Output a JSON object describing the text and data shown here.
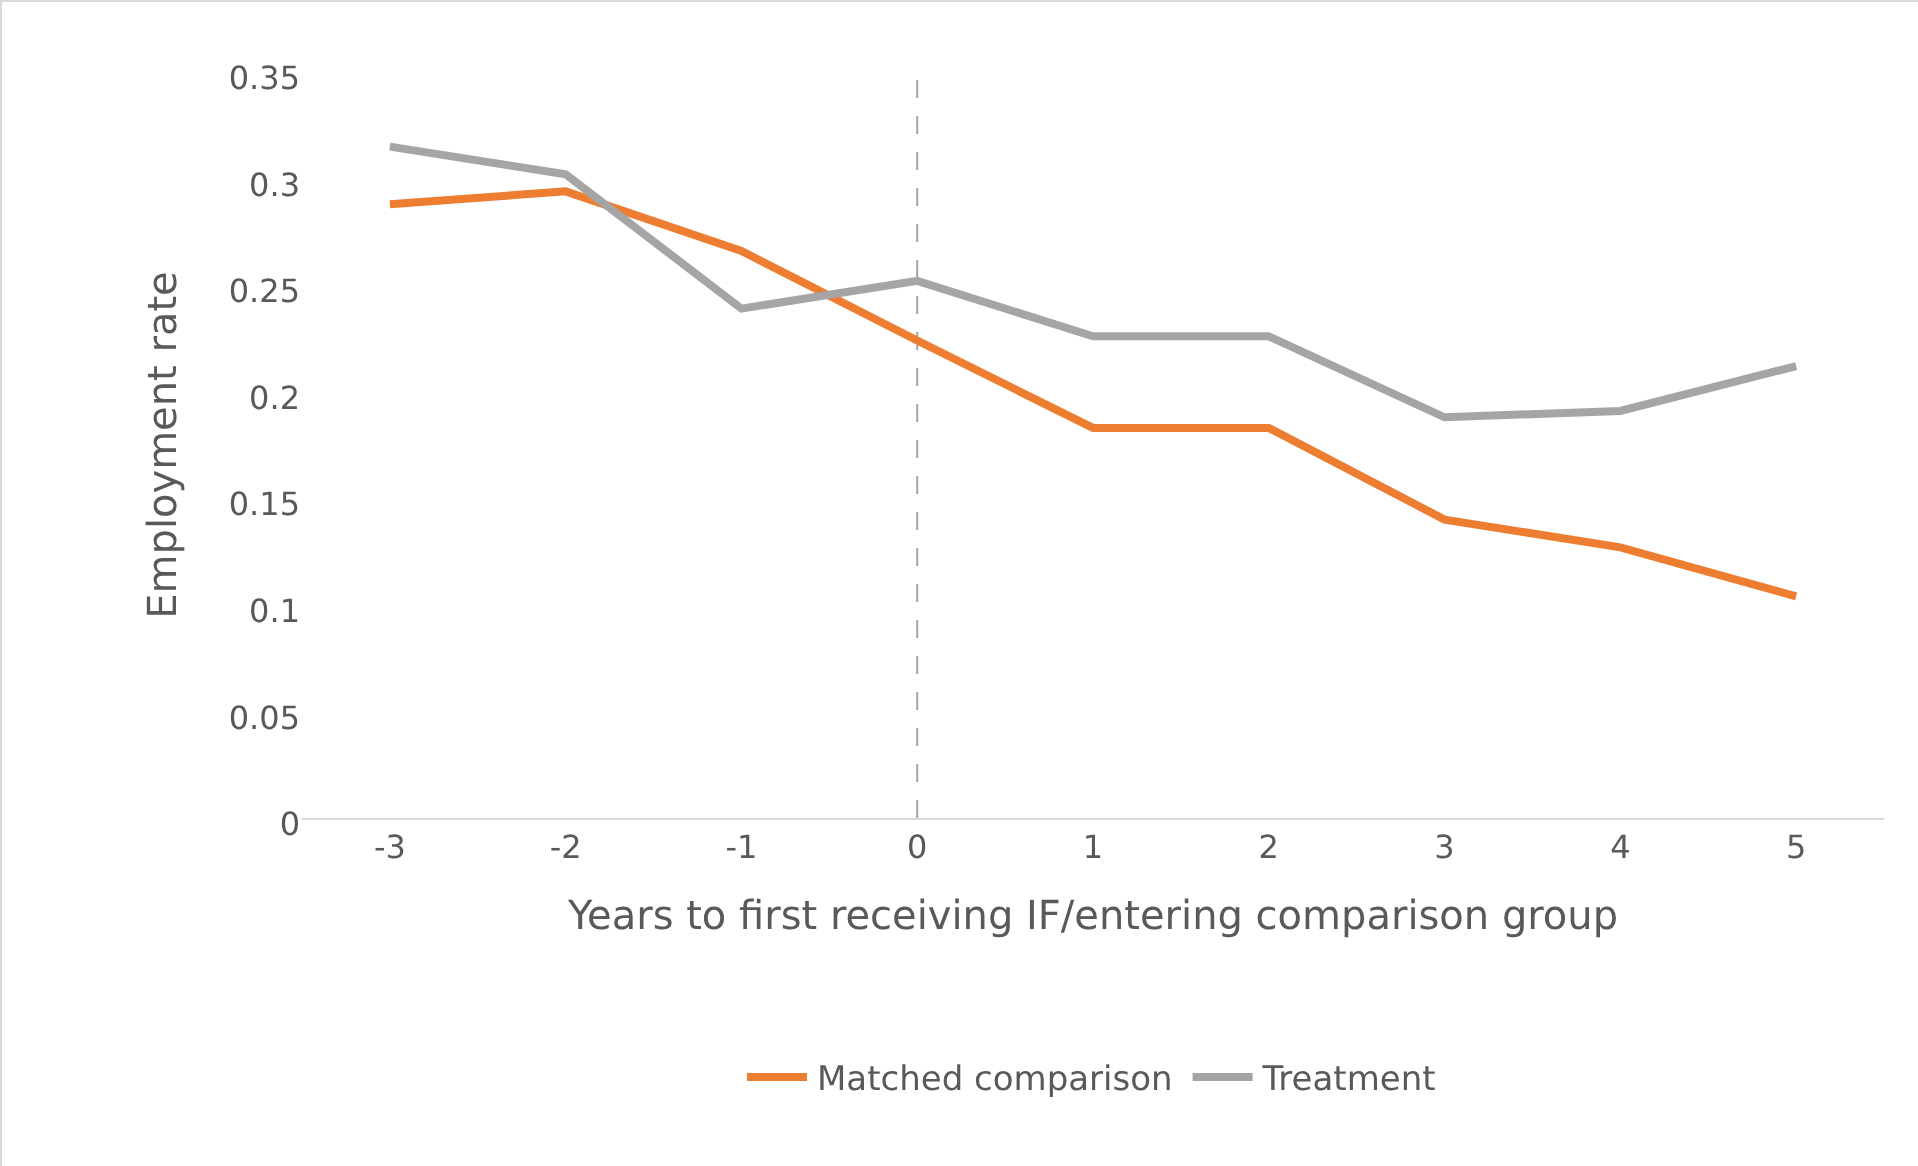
{
  "chart_data": {
    "type": "line",
    "xlabel": "Years to first receiving IF/entering comparison group",
    "ylabel": "Employment rate",
    "x": [
      -3,
      -2,
      -1,
      0,
      1,
      2,
      3,
      4,
      5
    ],
    "xlim": [
      -3.5,
      5.5
    ],
    "xticks": [
      -3,
      -2,
      -1,
      0,
      1,
      2,
      3,
      4,
      5
    ],
    "ylim": [
      0,
      0.35
    ],
    "yticks": [
      0,
      0.05,
      0.1,
      0.15,
      0.2,
      0.25,
      0.3,
      0.35
    ],
    "series": [
      {
        "name": "Matched comparison",
        "color": "#ed7d31",
        "values": [
          0.288,
          0.294,
          0.266,
          0.224,
          0.183,
          0.183,
          0.14,
          0.127,
          0.104
        ]
      },
      {
        "name": "Treatment",
        "color": "#a5a5a5",
        "values": [
          0.315,
          0.302,
          0.239,
          0.252,
          0.226,
          0.226,
          0.188,
          0.191,
          0.212
        ]
      }
    ],
    "ref_lines": [
      {
        "axis": "x",
        "value": 0,
        "color": "#a5a5a5",
        "line_style": "dashed"
      }
    ],
    "grid": false,
    "legend": "bottom",
    "marker": "none",
    "line_style": "solid"
  }
}
